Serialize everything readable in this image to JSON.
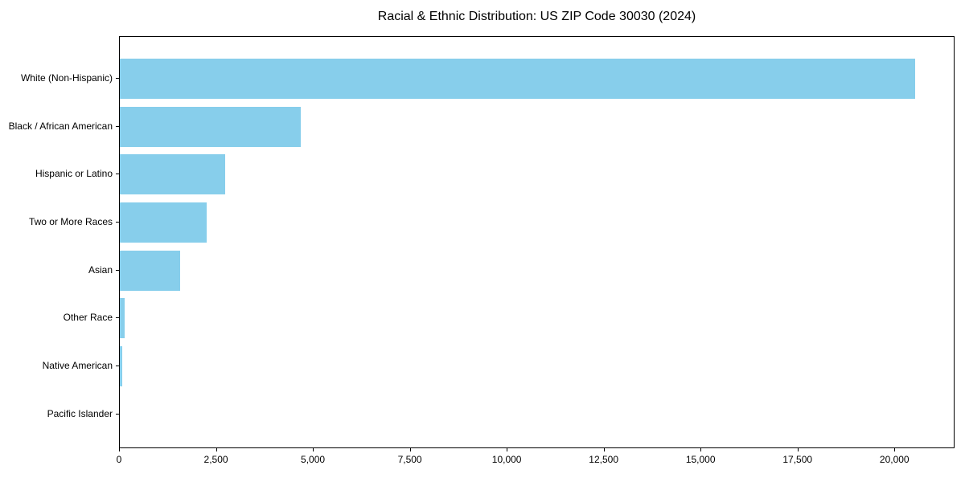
{
  "chart_data": {
    "type": "bar",
    "orientation": "horizontal",
    "title": "Racial & Ethnic Distribution: US ZIP Code 30030 (2024)",
    "categories": [
      "White (Non-Hispanic)",
      "Black / African American",
      "Hispanic or Latino",
      "Two or More Races",
      "Asian",
      "Other Race",
      "Native American",
      "Pacific Islander"
    ],
    "values": [
      20520,
      4675,
      2720,
      2230,
      1555,
      115,
      70,
      0
    ],
    "xlabel": "",
    "ylabel": "",
    "xlim": [
      0,
      21550
    ],
    "xticks": [
      0,
      2500,
      5000,
      7500,
      10000,
      12500,
      15000,
      17500,
      20000
    ],
    "xtick_labels": [
      "0",
      "2,500",
      "5,000",
      "7,500",
      "10,000",
      "12,500",
      "15,000",
      "17,500",
      "20,000"
    ],
    "bar_color": "#87CEEB",
    "axis_color": "#000000",
    "text_color": "#000000",
    "background_color": "#ffffff",
    "grid": false,
    "legend": false
  }
}
